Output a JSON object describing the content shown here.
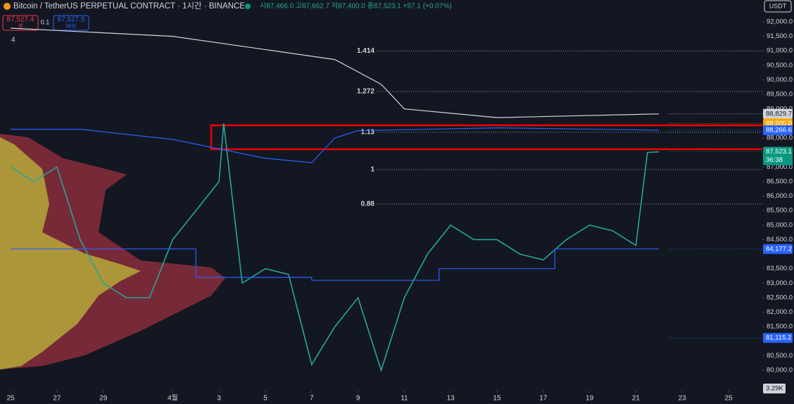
{
  "header": {
    "symbol": "Bitcoin / TetherUS PERPETUAL CONTRACT · 1시간 · BINANCE",
    "ohlc": "시87,466.0 고87,662.7 저87,400.0 종87,523.1 +57.1 (+0.07%)",
    "sell_price": "87,527.4",
    "sell_label": "셀",
    "spread": "0.1",
    "buy_price": "87,527.5",
    "buy_label": "바이",
    "indicator_count": "4",
    "currency": "USDT"
  },
  "chart_data": {
    "type": "line",
    "xlim": [
      -0.46,
      32.46
    ],
    "ylim": [
      79300,
      92750
    ],
    "xticks": [
      {
        "value": 0,
        "label": "25"
      },
      {
        "value": 2,
        "label": "27"
      },
      {
        "value": 4,
        "label": "29"
      },
      {
        "value": 7,
        "label": "4월"
      },
      {
        "value": 9,
        "label": "3"
      },
      {
        "value": 11,
        "label": "5"
      },
      {
        "value": 13,
        "label": "7"
      },
      {
        "value": 15,
        "label": "9"
      },
      {
        "value": 17,
        "label": "11"
      },
      {
        "value": 19,
        "label": "13"
      },
      {
        "value": 21,
        "label": "15"
      },
      {
        "value": 23,
        "label": "17"
      },
      {
        "value": 25,
        "label": "19"
      },
      {
        "value": 27,
        "label": "21"
      },
      {
        "value": 29,
        "label": "23"
      },
      {
        "value": 31,
        "label": "25"
      }
    ],
    "yticks": [
      {
        "value": 92000,
        "label": "92,000.0"
      },
      {
        "value": 91500,
        "label": "91,500.0"
      },
      {
        "value": 91000,
        "label": "91,000.0"
      },
      {
        "value": 90500,
        "label": "90,500.0"
      },
      {
        "value": 90000,
        "label": "90,000.0"
      },
      {
        "value": 89500,
        "label": "89,500.0"
      },
      {
        "value": 89000,
        "label": "89,000.0"
      },
      {
        "value": 88000,
        "label": "88,000.0"
      },
      {
        "value": 87000,
        "label": "87,000.0"
      },
      {
        "value": 86500,
        "label": "86,500.0"
      },
      {
        "value": 86000,
        "label": "86,000.0"
      },
      {
        "value": 85500,
        "label": "85,500.0"
      },
      {
        "value": 85000,
        "label": "85,000.0"
      },
      {
        "value": 84500,
        "label": "84,500.0"
      },
      {
        "value": 83500,
        "label": "83,500.0"
      },
      {
        "value": 83000,
        "label": "83,000.0"
      },
      {
        "value": 82500,
        "label": "82,500.0"
      },
      {
        "value": 82000,
        "label": "82,000.0"
      },
      {
        "value": 81500,
        "label": "81,500.0"
      },
      {
        "value": 80500,
        "label": "80,500.0"
      },
      {
        "value": 80000,
        "label": "80,000.0"
      }
    ],
    "series": [
      {
        "color": "#26a69a",
        "x": [
          0,
          1,
          2,
          3,
          4,
          5,
          6,
          7,
          8,
          9,
          9.2,
          10,
          11,
          12,
          13,
          14,
          15,
          16,
          17,
          18,
          19,
          20,
          21,
          22,
          23,
          24,
          25,
          26,
          27,
          27.5,
          28
        ],
        "values": [
          87000,
          86500,
          87000,
          84500,
          83000,
          82500,
          82500,
          84500,
          85500,
          86500,
          88500,
          83000,
          83500,
          83300,
          80200,
          81500,
          82500,
          80000,
          82500,
          84000,
          85000,
          84500,
          84500,
          84000,
          83800,
          84500,
          85000,
          84800,
          84300,
          87500,
          87523.1
        ]
      },
      {
        "color": "#d1d4dc",
        "x": [
          0,
          7,
          14,
          16,
          17,
          21,
          28
        ],
        "values": [
          91780,
          91500,
          90700,
          89850,
          89000,
          88700,
          88829.7
        ]
      },
      {
        "color": "#2962ff",
        "x": [
          0,
          3,
          7,
          11,
          13,
          14,
          15,
          21,
          28
        ],
        "values": [
          88300,
          88300,
          87950,
          87300,
          87150,
          88000,
          88250,
          88350,
          88266.6
        ]
      },
      {
        "color": "#2962ff",
        "x": [
          0,
          8,
          8,
          13,
          13,
          18.5,
          18.5,
          23.5,
          23.5,
          28
        ],
        "values": [
          84177.2,
          84177.2,
          83200,
          83200,
          83100,
          83100,
          83500,
          83500,
          84177.2,
          84177.2
        ]
      }
    ],
    "fib_levels": [
      {
        "value": 91000,
        "label": "1.414"
      },
      {
        "value": 89600,
        "label": "1.272"
      },
      {
        "value": 88196,
        "label": "1.13"
      },
      {
        "value": 86912,
        "label": "1"
      },
      {
        "value": 85724,
        "label": "0.88"
      }
    ],
    "price_labels": [
      {
        "value": 88829.7,
        "label": "88,829.7",
        "color": "#d1d4dc"
      },
      {
        "value": 88500,
        "label": "88,500.0",
        "color": "#f7a600"
      },
      {
        "value": 88266.6,
        "label": "88,266.6",
        "color": "#2962ff"
      },
      {
        "value": 87523.1,
        "label": "87,523.1",
        "color": "#089981"
      },
      {
        "value": 84177.2,
        "label": "84,177.2",
        "color": "#2962ff"
      },
      {
        "value": 81115.2,
        "label": "81,115.2",
        "color": "#2962ff"
      }
    ],
    "countdown": "36:38",
    "volume_label": "3.29K"
  }
}
